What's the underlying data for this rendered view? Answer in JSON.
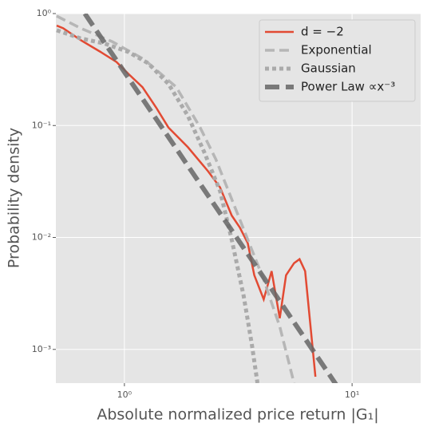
{
  "chart_data": {
    "type": "line",
    "xlabel": "Absolute normalized price return |G₁|",
    "ylabel": "Probability density",
    "xscale": "log",
    "yscale": "log",
    "xlim": [
      0.5,
      20
    ],
    "ylim": [
      0.0005,
      1
    ],
    "xticks": [
      {
        "value": 1,
        "label": "10⁰"
      },
      {
        "value": 10,
        "label": "10¹"
      }
    ],
    "yticks": [
      {
        "value": 0.001,
        "label": "10⁻³"
      },
      {
        "value": 0.01,
        "label": "10⁻²"
      },
      {
        "value": 0.1,
        "label": "10⁻¹"
      },
      {
        "value": 1,
        "label": "10⁰"
      }
    ],
    "grid": true,
    "legend": "upper right",
    "series": [
      {
        "name": "d = −2",
        "color": "#e24a33",
        "style": "solid",
        "x": [
          0.504,
          0.538,
          0.642,
          0.785,
          0.923,
          1.04,
          1.2,
          1.38,
          1.56,
          1.9,
          2.33,
          2.63,
          2.96,
          3.21,
          3.48,
          3.72,
          4.09,
          4.43,
          4.81,
          5.13,
          5.56,
          5.88,
          6.22,
          6.9
        ],
        "values": [
          0.78,
          0.74,
          0.58,
          0.455,
          0.37,
          0.29,
          0.22,
          0.144,
          0.096,
          0.064,
          0.039,
          0.028,
          0.0157,
          0.0123,
          0.0089,
          0.0046,
          0.0028,
          0.005,
          0.0019,
          0.0046,
          0.0059,
          0.0064,
          0.005,
          0.00057
        ]
      },
      {
        "name": "Exponential",
        "color": "#b0b0b0",
        "style": "dashed",
        "x": [
          0.504,
          0.642,
          0.886,
          1.22,
          1.69,
          2.15,
          2.52,
          2.96,
          3.48,
          4.09,
          4.81,
          5.56
        ],
        "values": [
          0.95,
          0.74,
          0.56,
          0.39,
          0.22,
          0.096,
          0.05,
          0.022,
          0.0096,
          0.0042,
          0.0016,
          0.0005
        ]
      },
      {
        "name": "Gaussian",
        "color": "#aaaaaa",
        "style": "dotted",
        "x": [
          0.504,
          0.642,
          0.818,
          1.04,
          1.27,
          1.56,
          1.9,
          2.24,
          2.63,
          2.96,
          3.34,
          3.63,
          3.84
        ],
        "values": [
          0.71,
          0.6,
          0.54,
          0.455,
          0.36,
          0.236,
          0.122,
          0.058,
          0.026,
          0.0096,
          0.003,
          0.0011,
          0.0005
        ]
      },
      {
        "name": "Power Law ∝x⁻³",
        "color": "#666666",
        "style": "bigdash",
        "x": [
          0.67,
          1,
          2,
          5,
          8.6
        ],
        "values": [
          1.0,
          0.3,
          0.0375,
          0.0024,
          0.00047
        ]
      }
    ]
  }
}
